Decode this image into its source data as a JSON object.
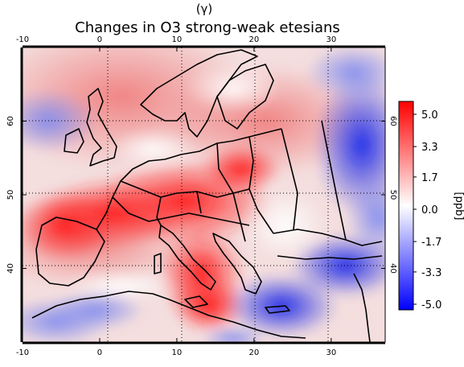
{
  "figure": {
    "panel_label": "(γ)",
    "title": "Changes in O3 strong-weak etesians"
  },
  "chart_data": {
    "type": "heatmap",
    "title": "Changes in O3 strong-weak etesians",
    "units": "[ppb]",
    "x_range": [
      -10,
      37
    ],
    "y_range": [
      30,
      70
    ],
    "x_ticks": [
      "-10",
      "0",
      "10",
      "20",
      "30"
    ],
    "y_ticks": [
      "40",
      "50",
      "60"
    ],
    "colorbar": {
      "label": "[ppb]",
      "min": -5.0,
      "max": 5.0,
      "ticks": [
        "5.0",
        "3.3",
        "1.7",
        "0.0",
        "-1.7",
        "-3.3",
        "-5.0"
      ]
    },
    "colors": {
      "positive": "#ff0000",
      "zero": "#ffffff",
      "negative": "#0000ff"
    },
    "grid": true
  }
}
